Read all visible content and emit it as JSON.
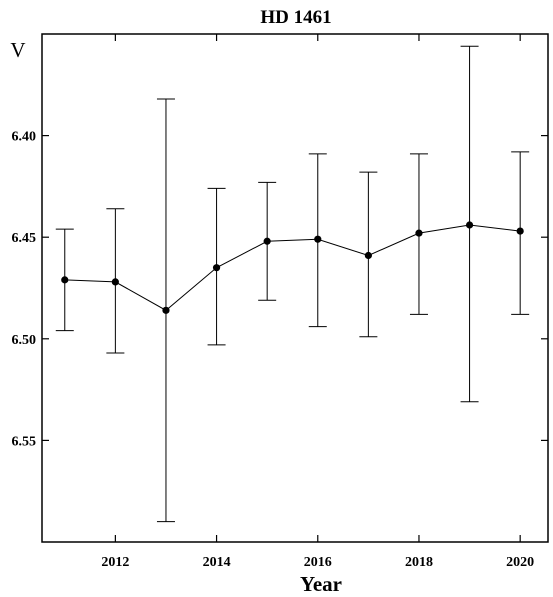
{
  "chart_data": {
    "type": "line",
    "title": "HD 1461",
    "xlabel": "Year",
    "ylabel": "V",
    "y_inverted": true,
    "xlim": [
      2010.55,
      2020.55
    ],
    "ylim": [
      6.35,
      6.6
    ],
    "xticks": [
      2012,
      2014,
      2016,
      2018,
      2020
    ],
    "yticks": [
      6.4,
      6.45,
      6.5,
      6.55
    ],
    "grid": false,
    "series": [
      {
        "marker": "circle",
        "color": "#000000",
        "x": [
          2011,
          2012,
          2013,
          2014,
          2015,
          2016,
          2017,
          2018,
          2019,
          2020
        ],
        "y": [
          6.471,
          6.472,
          6.486,
          6.465,
          6.452,
          6.451,
          6.459,
          6.448,
          6.444,
          6.447
        ],
        "err_low": [
          6.446,
          6.436,
          6.382,
          6.426,
          6.423,
          6.409,
          6.418,
          6.409,
          6.356,
          6.408
        ],
        "err_high": [
          6.496,
          6.507,
          6.59,
          6.503,
          6.481,
          6.494,
          6.499,
          6.488,
          6.531,
          6.488
        ]
      }
    ]
  }
}
